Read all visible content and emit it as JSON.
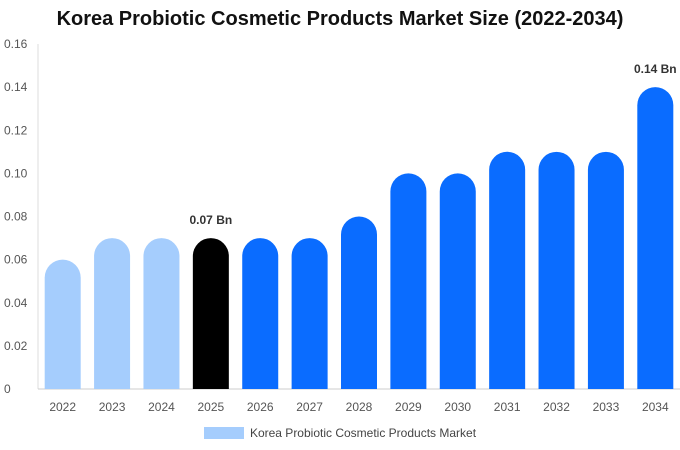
{
  "colors": {
    "historical": "#a5cdfd",
    "base_year": "#000000",
    "forecast": "#0a6cff",
    "legend": "#a5cdfd"
  },
  "chart_data": {
    "type": "bar",
    "title": "Korea Probiotic Cosmetic Products Market Size (2022-2034)",
    "xlabel": "",
    "ylabel": "",
    "categories": [
      "2022",
      "2023",
      "2024",
      "2025",
      "2026",
      "2027",
      "2028",
      "2029",
      "2030",
      "2031",
      "2032",
      "2033",
      "2034"
    ],
    "series": [
      {
        "name": "Korea Probiotic Cosmetic Products Market",
        "values": [
          0.06,
          0.07,
          0.07,
          0.07,
          0.07,
          0.07,
          0.08,
          0.1,
          0.1,
          0.11,
          0.11,
          0.11,
          0.14
        ]
      }
    ],
    "bar_kinds": [
      "historical",
      "historical",
      "historical",
      "base_year",
      "forecast",
      "forecast",
      "forecast",
      "forecast",
      "forecast",
      "forecast",
      "forecast",
      "forecast",
      "forecast"
    ],
    "ylim": [
      0,
      0.16
    ],
    "yticks": [
      "0",
      "0.02",
      "0.04",
      "0.06",
      "0.08",
      "0.10",
      "0.12",
      "0.14",
      "0.16"
    ],
    "data_labels": [
      {
        "category": "2025",
        "text": "0.07 Bn"
      },
      {
        "category": "2034",
        "text": "0.14 Bn"
      }
    ],
    "grid": false,
    "legend_position": "bottom-center"
  }
}
